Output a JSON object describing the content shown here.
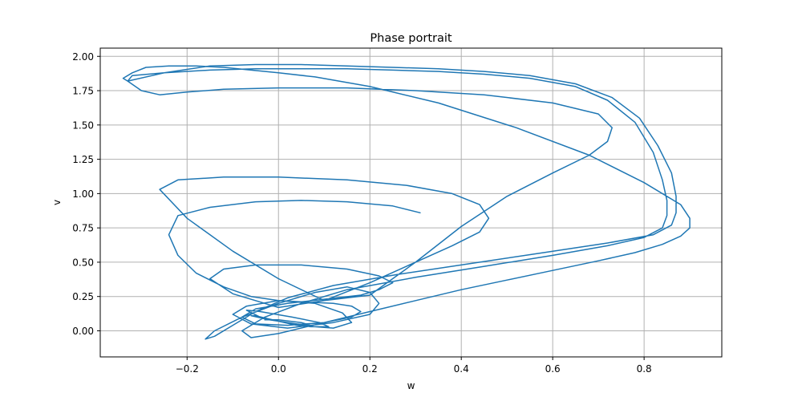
{
  "chart_data": {
    "type": "line",
    "title": "Phase portrait",
    "xlabel": "w",
    "ylabel": "v",
    "xlim": [
      -0.39,
      0.97
    ],
    "ylim": [
      -0.19,
      2.06
    ],
    "grid": true,
    "legend": "none",
    "x_ticks": [
      -0.2,
      0.0,
      0.2,
      0.4,
      0.6,
      0.8
    ],
    "x_tick_labels": [
      "−0.2",
      "0.0",
      "0.2",
      "0.4",
      "0.6",
      "0.8"
    ],
    "y_ticks": [
      0.0,
      0.25,
      0.5,
      0.75,
      1.0,
      1.25,
      1.5,
      1.75,
      2.0
    ],
    "y_tick_labels": [
      "0.00",
      "0.25",
      "0.50",
      "0.75",
      "1.00",
      "1.25",
      "1.50",
      "1.75",
      "2.00"
    ],
    "series": [
      {
        "color": "#1f77b4",
        "x": [
          0.31,
          0.25,
          0.15,
          0.05,
          -0.05,
          -0.15,
          -0.22,
          -0.24,
          -0.22,
          -0.18,
          -0.12,
          -0.06,
          0.0,
          0.06,
          0.12,
          0.16,
          0.18,
          0.16,
          0.1,
          0.02,
          -0.05,
          -0.08,
          -0.05,
          0.02,
          0.1,
          0.18,
          0.22,
          0.25,
          0.22,
          0.15,
          0.05,
          -0.05,
          -0.12,
          -0.15,
          -0.1,
          0.0,
          0.1,
          0.2,
          0.3,
          0.38,
          0.44,
          0.46,
          0.44,
          0.38,
          0.28,
          0.15,
          0.0,
          -0.12,
          -0.22,
          -0.26,
          -0.2,
          -0.1,
          0.0,
          0.1,
          0.2,
          0.3,
          0.4,
          0.5,
          0.6,
          0.68,
          0.72,
          0.73,
          0.7,
          0.6,
          0.45,
          0.3,
          0.15,
          0.0,
          -0.12,
          -0.2,
          -0.26,
          -0.3,
          -0.33,
          -0.32,
          -0.25,
          -0.15,
          -0.05,
          0.05,
          0.15,
          0.25,
          0.35,
          0.45,
          0.55,
          0.65,
          0.72,
          0.78,
          0.82,
          0.84,
          0.85,
          0.85,
          0.84,
          0.8,
          0.72,
          0.6,
          0.45,
          0.3,
          0.15,
          0.05,
          -0.03,
          -0.08,
          -0.06,
          0.0,
          0.1,
          0.2,
          0.3,
          0.4,
          0.5,
          0.6,
          0.7,
          0.78,
          0.84,
          0.88,
          0.9,
          0.9,
          0.88,
          0.8,
          0.68,
          0.52,
          0.35,
          0.2,
          0.08,
          0.0,
          -0.06,
          -0.12,
          -0.18,
          -0.24,
          -0.29,
          -0.32,
          -0.34,
          -0.33,
          -0.25,
          -0.15,
          -0.05,
          0.05,
          0.15,
          0.25,
          0.35,
          0.45,
          0.55,
          0.65,
          0.73,
          0.79,
          0.83,
          0.86,
          0.87,
          0.87,
          0.86,
          0.82,
          0.72,
          0.58,
          0.42,
          0.26,
          0.12,
          0.02,
          -0.05,
          -0.1,
          -0.14,
          -0.16,
          -0.14,
          -0.08,
          0.0,
          0.08,
          0.15,
          0.2,
          0.22,
          0.2,
          0.12,
          0.02,
          -0.06,
          -0.1,
          -0.07,
          0.0,
          0.08,
          0.14,
          0.16,
          0.12,
          0.04,
          -0.04,
          -0.07,
          -0.04,
          0.03,
          0.09,
          0.11,
          0.07,
          0.0,
          -0.05,
          -0.06,
          -0.02,
          0.04,
          0.07,
          0.05,
          0.0,
          -0.03
        ],
        "y": [
          0.86,
          0.91,
          0.94,
          0.95,
          0.94,
          0.9,
          0.84,
          0.7,
          0.55,
          0.42,
          0.32,
          0.25,
          0.22,
          0.21,
          0.2,
          0.18,
          0.14,
          0.1,
          0.06,
          0.04,
          0.05,
          0.1,
          0.16,
          0.2,
          0.23,
          0.26,
          0.3,
          0.35,
          0.4,
          0.45,
          0.48,
          0.48,
          0.45,
          0.38,
          0.27,
          0.17,
          0.22,
          0.35,
          0.5,
          0.62,
          0.72,
          0.82,
          0.92,
          1.0,
          1.06,
          1.1,
          1.12,
          1.12,
          1.1,
          1.03,
          0.82,
          0.58,
          0.38,
          0.22,
          0.26,
          0.5,
          0.76,
          0.98,
          1.15,
          1.28,
          1.38,
          1.48,
          1.58,
          1.66,
          1.72,
          1.75,
          1.77,
          1.77,
          1.76,
          1.74,
          1.72,
          1.75,
          1.82,
          1.86,
          1.88,
          1.9,
          1.91,
          1.91,
          1.91,
          1.9,
          1.89,
          1.87,
          1.84,
          1.78,
          1.68,
          1.52,
          1.3,
          1.1,
          0.95,
          0.84,
          0.75,
          0.68,
          0.62,
          0.55,
          0.47,
          0.39,
          0.3,
          0.2,
          0.1,
          0.0,
          -0.05,
          -0.02,
          0.06,
          0.14,
          0.22,
          0.3,
          0.37,
          0.44,
          0.51,
          0.57,
          0.63,
          0.69,
          0.75,
          0.82,
          0.92,
          1.08,
          1.28,
          1.48,
          1.66,
          1.78,
          1.85,
          1.88,
          1.9,
          1.92,
          1.93,
          1.93,
          1.92,
          1.88,
          1.84,
          1.82,
          1.88,
          1.93,
          1.94,
          1.94,
          1.93,
          1.92,
          1.91,
          1.89,
          1.86,
          1.8,
          1.7,
          1.55,
          1.35,
          1.15,
          0.98,
          0.86,
          0.77,
          0.7,
          0.64,
          0.57,
          0.49,
          0.41,
          0.33,
          0.24,
          0.14,
          0.04,
          -0.04,
          -0.06,
          0.0,
          0.1,
          0.2,
          0.28,
          0.32,
          0.28,
          0.2,
          0.12,
          0.06,
          0.02,
          0.05,
          0.12,
          0.18,
          0.22,
          0.2,
          0.13,
          0.06,
          0.02,
          0.04,
          0.1,
          0.15,
          0.14,
          0.1,
          0.06,
          0.03,
          0.03,
          0.07,
          0.11,
          0.11,
          0.08,
          0.05,
          0.04,
          0.06,
          0.08,
          0.08
        ]
      }
    ]
  }
}
